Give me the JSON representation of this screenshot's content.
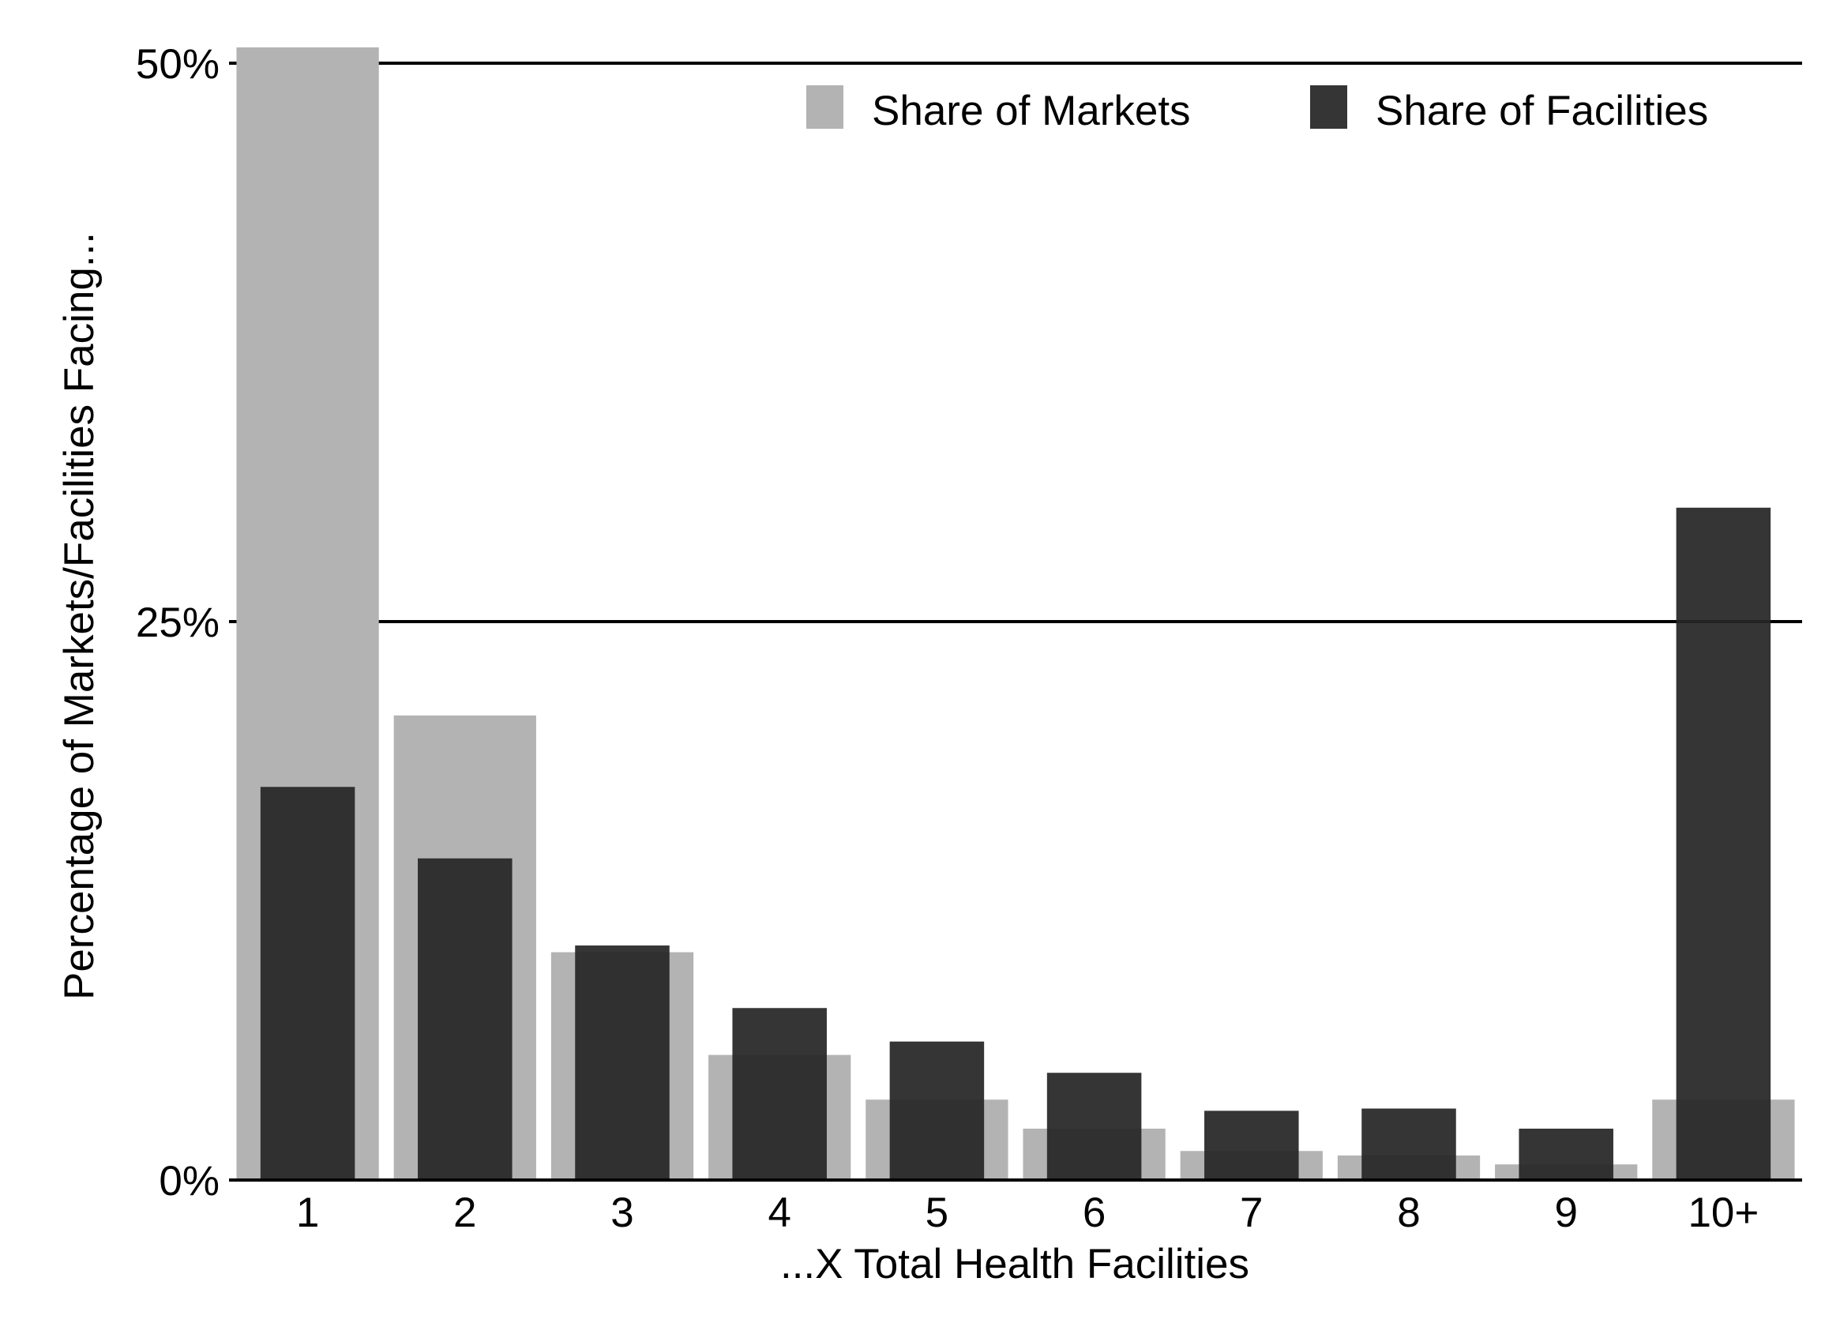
{
  "chart_data": {
    "type": "bar",
    "title": "",
    "xlabel": "...X Total Health Facilities",
    "ylabel": "Percentage of Markets/Facilities Facing...",
    "categories": [
      "1",
      "2",
      "3",
      "4",
      "5",
      "6",
      "7",
      "8",
      "9",
      "10+"
    ],
    "series": [
      {
        "name": "Share of Markets",
        "color": "#b3b3b3",
        "values": [
          50.8,
          20.8,
          10.2,
          5.6,
          3.6,
          2.3,
          1.3,
          1.1,
          0.7,
          3.6
        ]
      },
      {
        "name": "Share of Facilities",
        "color": "#262626",
        "opacity": 0.93,
        "values": [
          17.6,
          14.4,
          10.5,
          7.7,
          6.2,
          4.8,
          3.1,
          3.2,
          2.3,
          30.1
        ]
      }
    ],
    "ylim": [
      0,
      50
    ],
    "yticks": [
      {
        "value": 0,
        "label": "0%"
      },
      {
        "value": 25,
        "label": "25%"
      },
      {
        "value": 50,
        "label": "50%"
      }
    ],
    "grid": "horizontal lines at y-tick values",
    "legend": "top-right"
  }
}
